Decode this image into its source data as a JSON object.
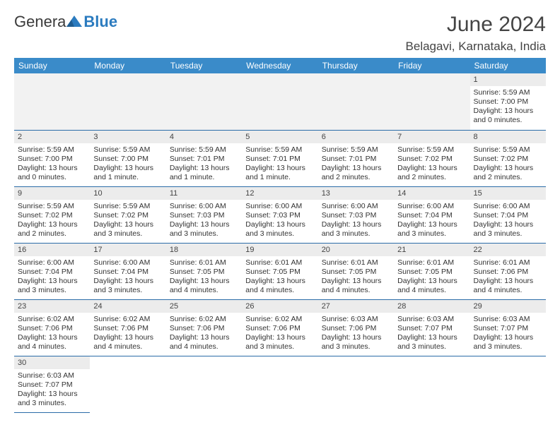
{
  "logo": {
    "text1": "Genera",
    "text2": "Blue"
  },
  "title": "June 2024",
  "location": "Belagavi, Karnataka, India",
  "colors": {
    "header_bg": "#3a8bc9",
    "header_text": "#ffffff",
    "daynum_bg": "#ececec",
    "row_border": "#2b6ca8",
    "logo_blue": "#2b7bbf"
  },
  "day_headers": [
    "Sunday",
    "Monday",
    "Tuesday",
    "Wednesday",
    "Thursday",
    "Friday",
    "Saturday"
  ],
  "first_weekday": 6,
  "num_days": 30,
  "days": {
    "1": {
      "sunrise": "5:59 AM",
      "sunset": "7:00 PM",
      "daylight": "13 hours and 0 minutes."
    },
    "2": {
      "sunrise": "5:59 AM",
      "sunset": "7:00 PM",
      "daylight": "13 hours and 0 minutes."
    },
    "3": {
      "sunrise": "5:59 AM",
      "sunset": "7:00 PM",
      "daylight": "13 hours and 1 minute."
    },
    "4": {
      "sunrise": "5:59 AM",
      "sunset": "7:01 PM",
      "daylight": "13 hours and 1 minute."
    },
    "5": {
      "sunrise": "5:59 AM",
      "sunset": "7:01 PM",
      "daylight": "13 hours and 1 minute."
    },
    "6": {
      "sunrise": "5:59 AM",
      "sunset": "7:01 PM",
      "daylight": "13 hours and 2 minutes."
    },
    "7": {
      "sunrise": "5:59 AM",
      "sunset": "7:02 PM",
      "daylight": "13 hours and 2 minutes."
    },
    "8": {
      "sunrise": "5:59 AM",
      "sunset": "7:02 PM",
      "daylight": "13 hours and 2 minutes."
    },
    "9": {
      "sunrise": "5:59 AM",
      "sunset": "7:02 PM",
      "daylight": "13 hours and 2 minutes."
    },
    "10": {
      "sunrise": "5:59 AM",
      "sunset": "7:02 PM",
      "daylight": "13 hours and 3 minutes."
    },
    "11": {
      "sunrise": "6:00 AM",
      "sunset": "7:03 PM",
      "daylight": "13 hours and 3 minutes."
    },
    "12": {
      "sunrise": "6:00 AM",
      "sunset": "7:03 PM",
      "daylight": "13 hours and 3 minutes."
    },
    "13": {
      "sunrise": "6:00 AM",
      "sunset": "7:03 PM",
      "daylight": "13 hours and 3 minutes."
    },
    "14": {
      "sunrise": "6:00 AM",
      "sunset": "7:04 PM",
      "daylight": "13 hours and 3 minutes."
    },
    "15": {
      "sunrise": "6:00 AM",
      "sunset": "7:04 PM",
      "daylight": "13 hours and 3 minutes."
    },
    "16": {
      "sunrise": "6:00 AM",
      "sunset": "7:04 PM",
      "daylight": "13 hours and 3 minutes."
    },
    "17": {
      "sunrise": "6:00 AM",
      "sunset": "7:04 PM",
      "daylight": "13 hours and 3 minutes."
    },
    "18": {
      "sunrise": "6:01 AM",
      "sunset": "7:05 PM",
      "daylight": "13 hours and 4 minutes."
    },
    "19": {
      "sunrise": "6:01 AM",
      "sunset": "7:05 PM",
      "daylight": "13 hours and 4 minutes."
    },
    "20": {
      "sunrise": "6:01 AM",
      "sunset": "7:05 PM",
      "daylight": "13 hours and 4 minutes."
    },
    "21": {
      "sunrise": "6:01 AM",
      "sunset": "7:05 PM",
      "daylight": "13 hours and 4 minutes."
    },
    "22": {
      "sunrise": "6:01 AM",
      "sunset": "7:06 PM",
      "daylight": "13 hours and 4 minutes."
    },
    "23": {
      "sunrise": "6:02 AM",
      "sunset": "7:06 PM",
      "daylight": "13 hours and 4 minutes."
    },
    "24": {
      "sunrise": "6:02 AM",
      "sunset": "7:06 PM",
      "daylight": "13 hours and 4 minutes."
    },
    "25": {
      "sunrise": "6:02 AM",
      "sunset": "7:06 PM",
      "daylight": "13 hours and 4 minutes."
    },
    "26": {
      "sunrise": "6:02 AM",
      "sunset": "7:06 PM",
      "daylight": "13 hours and 3 minutes."
    },
    "27": {
      "sunrise": "6:03 AM",
      "sunset": "7:06 PM",
      "daylight": "13 hours and 3 minutes."
    },
    "28": {
      "sunrise": "6:03 AM",
      "sunset": "7:07 PM",
      "daylight": "13 hours and 3 minutes."
    },
    "29": {
      "sunrise": "6:03 AM",
      "sunset": "7:07 PM",
      "daylight": "13 hours and 3 minutes."
    },
    "30": {
      "sunrise": "6:03 AM",
      "sunset": "7:07 PM",
      "daylight": "13 hours and 3 minutes."
    }
  },
  "labels": {
    "sunrise_prefix": "Sunrise: ",
    "sunset_prefix": "Sunset: ",
    "daylight_prefix": "Daylight: "
  }
}
